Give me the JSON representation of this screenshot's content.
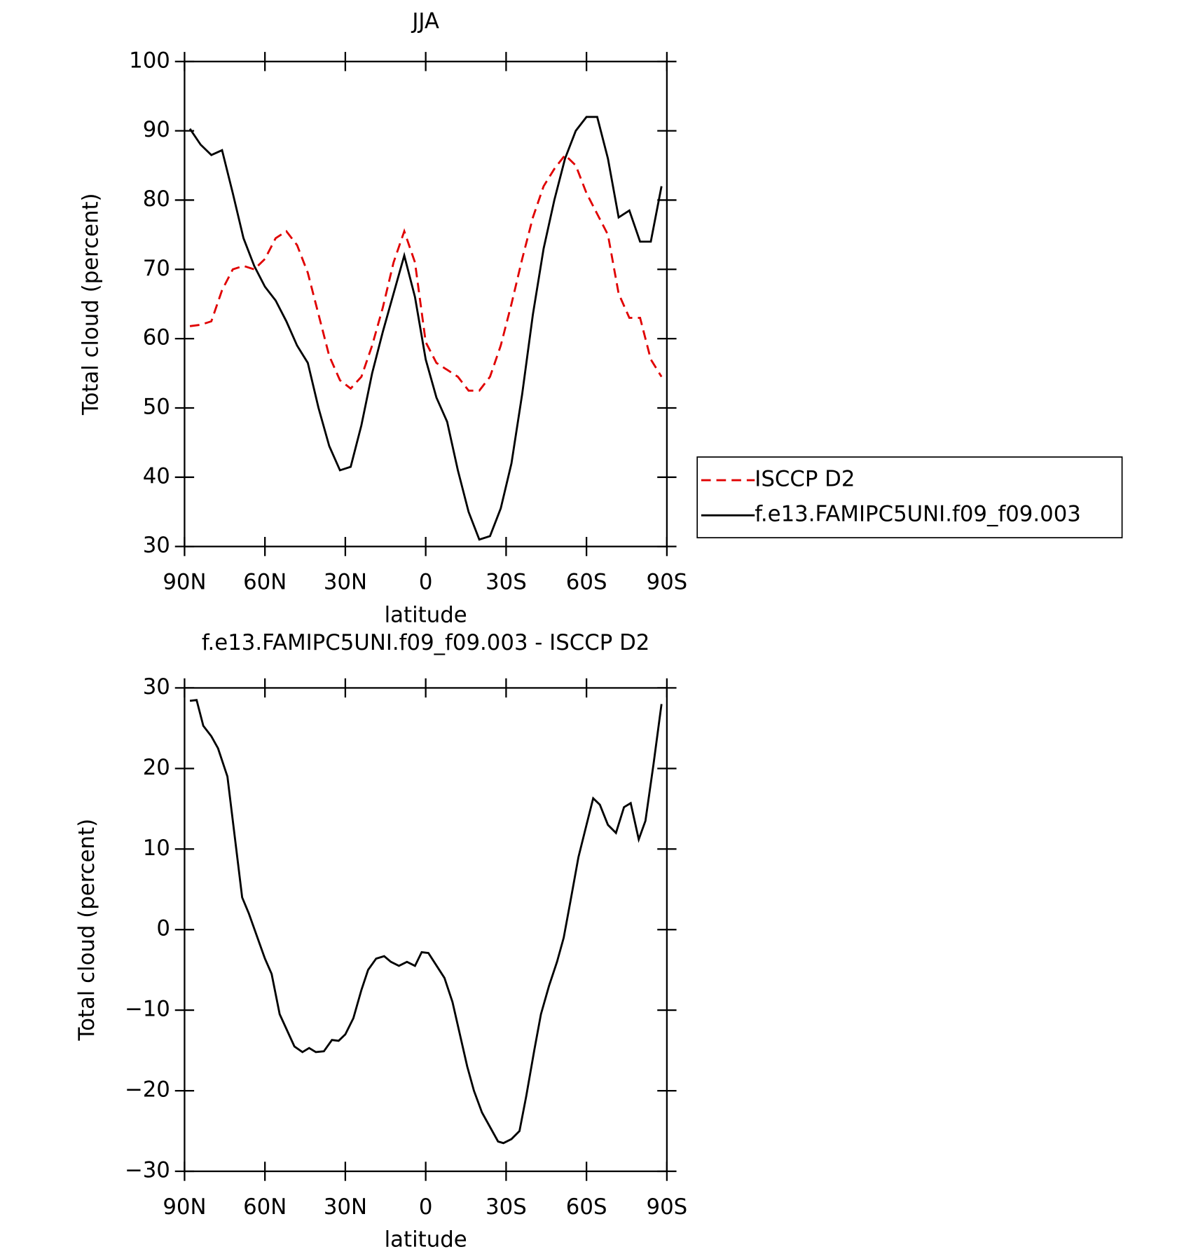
{
  "chart_data": [
    {
      "type": "line",
      "title": "JJA",
      "x_label": "latitude",
      "y_label": "Total cloud (percent)",
      "xlim": [
        90,
        -90
      ],
      "xticks": [
        {
          "value": 90,
          "label": "90N"
        },
        {
          "value": 60,
          "label": "60N"
        },
        {
          "value": 30,
          "label": "30N"
        },
        0,
        {
          "value": -30,
          "label": "30S"
        },
        {
          "value": -60,
          "label": "60S"
        },
        {
          "value": -90,
          "label": "90S"
        }
      ],
      "ylim": [
        30,
        100
      ],
      "yticks": [
        30,
        40,
        50,
        60,
        70,
        80,
        90,
        100
      ],
      "legend": "right",
      "x": [
        88,
        84,
        80,
        76,
        72,
        68,
        64,
        60,
        56,
        52,
        48,
        44,
        40,
        36,
        32,
        28,
        24,
        20,
        16,
        12,
        8,
        4,
        0,
        -4,
        -8,
        -12,
        -16,
        -20,
        -24,
        -28,
        -32,
        -36,
        -40,
        -44,
        -48,
        -52,
        -56,
        -60,
        -64,
        -68,
        -72,
        -76,
        -80,
        -84,
        -88
      ],
      "series": [
        {
          "name": "ISCCP D2",
          "color": "#e00000",
          "dash": true,
          "values": [
            61.8,
            62,
            62.5,
            67,
            70,
            70.5,
            70,
            71.5,
            74.5,
            75.5,
            73.5,
            69.5,
            63.5,
            57.5,
            54,
            52.8,
            54.5,
            59,
            64.5,
            71,
            75.5,
            71,
            59.5,
            56.5,
            55.5,
            54.5,
            52.5,
            52.5,
            54.5,
            59,
            65,
            71.5,
            77.5,
            82,
            84.5,
            86.5,
            85,
            81,
            78,
            75,
            66.5,
            63,
            63,
            57,
            54.5
          ]
        },
        {
          "name": "f.e13.FAMIPC5UNI.f09_f09.003",
          "color": "#000000",
          "dash": false,
          "values": [
            90.3,
            88,
            86.5,
            87.2,
            81,
            74.5,
            70.5,
            67.5,
            65.5,
            62.5,
            59,
            56.5,
            50,
            44.5,
            41,
            41.5,
            47.5,
            55,
            61,
            66.5,
            72,
            66,
            57,
            51.5,
            48,
            41,
            35,
            31,
            31.5,
            35.5,
            42,
            52,
            63.5,
            73,
            80,
            86,
            90,
            92,
            92,
            86,
            77.5,
            78.5,
            74,
            74,
            82
          ]
        }
      ]
    },
    {
      "type": "line",
      "title": "f.e13.FAMIPC5UNI.f09_f09.003 - ISCCP D2",
      "x_label": "latitude",
      "y_label": "Total cloud (percent)",
      "xlim": [
        90,
        -90
      ],
      "xticks": [
        {
          "value": 90,
          "label": "90N"
        },
        {
          "value": 60,
          "label": "60N"
        },
        {
          "value": 30,
          "label": "30N"
        },
        0,
        {
          "value": -30,
          "label": "30S"
        },
        {
          "value": -60,
          "label": "60S"
        },
        {
          "value": -90,
          "label": "90S"
        }
      ],
      "ylim": [
        -30,
        30
      ],
      "yticks": [
        {
          "value": -30,
          "label": "−30"
        },
        {
          "value": -20,
          "label": "−20"
        },
        {
          "value": -10,
          "label": "−10"
        },
        0,
        10,
        20,
        30
      ],
      "x": [
        88,
        85.5,
        83,
        80,
        77.5,
        74,
        68.5,
        66,
        60,
        57.5,
        54.5,
        49,
        46,
        43.5,
        41,
        38,
        35,
        32.5,
        30,
        27,
        24,
        21.5,
        18.5,
        15.5,
        13,
        10,
        7,
        4,
        1.5,
        -1,
        -7,
        -10,
        -15.5,
        -18,
        -21,
        -27,
        -29,
        -32,
        -35,
        -37.5,
        -40.5,
        -43,
        -46,
        -49,
        -51.5,
        -54,
        -57,
        -60,
        -62.5,
        -65,
        -68,
        -71,
        -74,
        -76.5,
        -79.5,
        -82,
        -85,
        -88
      ],
      "color": "#000000",
      "values": [
        28.4,
        28.5,
        25.3,
        24,
        22.5,
        19,
        4,
        2,
        -3.6,
        -5.5,
        -10.5,
        -14.5,
        -15.2,
        -14.7,
        -15.2,
        -15.1,
        -13.7,
        -13.8,
        -13,
        -11,
        -7.5,
        -5,
        -3.6,
        -3.3,
        -4,
        -4.5,
        -4,
        -4.5,
        -2.8,
        -2.9,
        -6,
        -9,
        -17,
        -20,
        -22.7,
        -26.3,
        -26.5,
        -26,
        -25,
        -20.7,
        -15,
        -10.5,
        -7,
        -4,
        -1,
        3.5,
        9,
        13,
        16.3,
        15.5,
        13,
        12,
        15.2,
        15.7,
        11.2,
        13.5,
        20.5,
        28
      ]
    }
  ]
}
